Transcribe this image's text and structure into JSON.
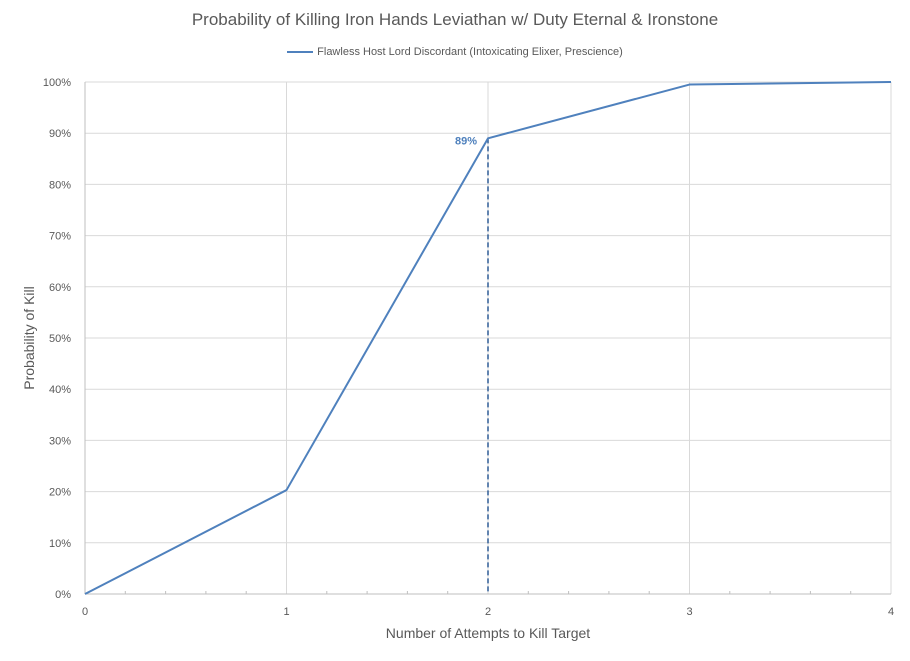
{
  "chart_data": {
    "type": "line",
    "title": "Probability of Killing Iron Hands Leviathan w/ Duty Eternal & Ironstone",
    "xlabel": "Number of Attempts to Kill Target",
    "ylabel": "Probability of Kill",
    "x": [
      0,
      1,
      2,
      3,
      4
    ],
    "series": [
      {
        "name": "Flawless Host Lord Discordant (Intoxicating Elixer, Prescience)",
        "color": "#4f81bd",
        "values": [
          0,
          20.3,
          89,
          99.5,
          100
        ]
      }
    ],
    "xlim": [
      0,
      4
    ],
    "ylim": [
      0,
      100
    ],
    "y_ticks": [
      "0%",
      "10%",
      "20%",
      "30%",
      "40%",
      "50%",
      "60%",
      "70%",
      "80%",
      "90%",
      "100%"
    ],
    "x_ticks": [
      "0",
      "1",
      "2",
      "3",
      "4"
    ],
    "annotation": {
      "x": 2,
      "y": 89,
      "label": "89%",
      "style": "dashed vertical drop line"
    },
    "grid": true,
    "legend_position": "top"
  }
}
